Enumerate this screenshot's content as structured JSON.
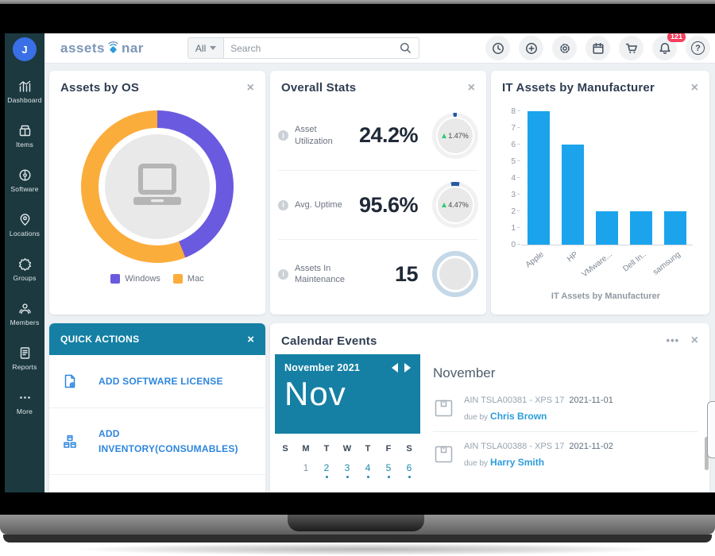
{
  "topbar": {
    "logo": {
      "prefix": "assets",
      "suffix": "nar",
      "icon": "sonar-icon"
    },
    "search": {
      "filter_value": "All",
      "placeholder": "Search",
      "icon": "search-icon"
    },
    "action_icons": [
      "clock-icon",
      "add-icon",
      "settings-icon",
      "calendar-icon",
      "cart-icon",
      "notifications-icon",
      "help-icon"
    ],
    "notification_badge": "121"
  },
  "sidebar": {
    "avatar_initial": "J",
    "items": [
      {
        "label": "Dashboard",
        "icon": "dashboard-icon"
      },
      {
        "label": "Items",
        "icon": "items-icon"
      },
      {
        "label": "Software",
        "icon": "software-icon"
      },
      {
        "label": "Locations",
        "icon": "locations-icon"
      },
      {
        "label": "Groups",
        "icon": "groups-icon"
      },
      {
        "label": "Members",
        "icon": "members-icon"
      },
      {
        "label": "Reports",
        "icon": "reports-icon"
      },
      {
        "label": "More",
        "icon": "more-icon"
      }
    ]
  },
  "cards": {
    "assets_by_os": {
      "title": "Assets by OS",
      "legend": [
        {
          "label": "Windows",
          "color": "#6A5AE0"
        },
        {
          "label": "Mac",
          "color": "#FBAD3C"
        }
      ]
    },
    "overall_stats": {
      "title": "Overall Stats",
      "rows": [
        {
          "label": "Asset Utilization",
          "value": "24.2%",
          "delta": "1.47%"
        },
        {
          "label": "Avg. Uptime",
          "value": "95.6%",
          "delta": "4.47%"
        },
        {
          "label": "Assets In Maintenance",
          "value": "15",
          "delta": ""
        }
      ]
    },
    "it_assets_by_manufacturer": {
      "title": "IT Assets by Manufacturer",
      "caption": "IT Assets by Manufacturer"
    },
    "quick_actions": {
      "title": "QUICK ACTIONS",
      "items": [
        {
          "label": "ADD SOFTWARE LICENSE",
          "icon": "software-license-icon"
        },
        {
          "label": "ADD INVENTORY(CONSUMABLES)",
          "icon": "inventory-icon"
        }
      ]
    },
    "calendar_events": {
      "title": "Calendar Events",
      "menu": "•••",
      "month_label": "November 2021",
      "month_short": "Nov",
      "day_headers": [
        "S",
        "M",
        "T",
        "W",
        "T",
        "F",
        "S"
      ],
      "dates": [
        {
          "day": "",
          "active": false
        },
        {
          "day": "1",
          "active": false
        },
        {
          "day": "2",
          "active": true
        },
        {
          "day": "3",
          "active": true
        },
        {
          "day": "4",
          "active": true
        },
        {
          "day": "5",
          "active": true
        },
        {
          "day": "6",
          "active": true
        }
      ],
      "list_heading": "November",
      "events": [
        {
          "asset": "AIN TSLA00381 - XPS 17",
          "date": "2021-11-01",
          "due_prefix": "due by",
          "person": "Chris Brown"
        },
        {
          "asset": "AIN TSLA00388 - XPS 17",
          "date": "2021-11-02",
          "due_prefix": "due by",
          "person": "Harry Smith"
        }
      ]
    }
  },
  "chart_data": [
    {
      "type": "pie",
      "title": "Assets by OS",
      "labels": [
        "Windows",
        "Mac"
      ],
      "values": [
        44,
        56
      ],
      "units": "percent, estimated from donut arc angles",
      "colors": [
        "#6A5AE0",
        "#FBAD3C"
      ],
      "donut": true,
      "center_icon": "laptop-icon",
      "legend_position": "bottom"
    },
    {
      "type": "bar",
      "title": "IT Assets by Manufacturer",
      "categories": [
        "Apple",
        "HP",
        "VMware...",
        "Dell In..",
        "samsung"
      ],
      "values": [
        8,
        6,
        2,
        2,
        2
      ],
      "xlabel": "",
      "ylabel": "",
      "ylim": [
        0,
        8
      ],
      "ytick_step": 1,
      "bar_color": "#1BA4EC",
      "grid": false,
      "caption": "IT Assets by Manufacturer"
    }
  ],
  "colors": {
    "teal_accent": "#1580A4",
    "link_blue": "#2E86DE",
    "person_link_blue": "#2D9CDB",
    "badge_red": "#F43F5E",
    "sidebar_bg": "#1C3940",
    "bar_blue": "#1BA4EC",
    "donut_purple": "#6A5AE0",
    "donut_orange": "#FBAD3C"
  }
}
